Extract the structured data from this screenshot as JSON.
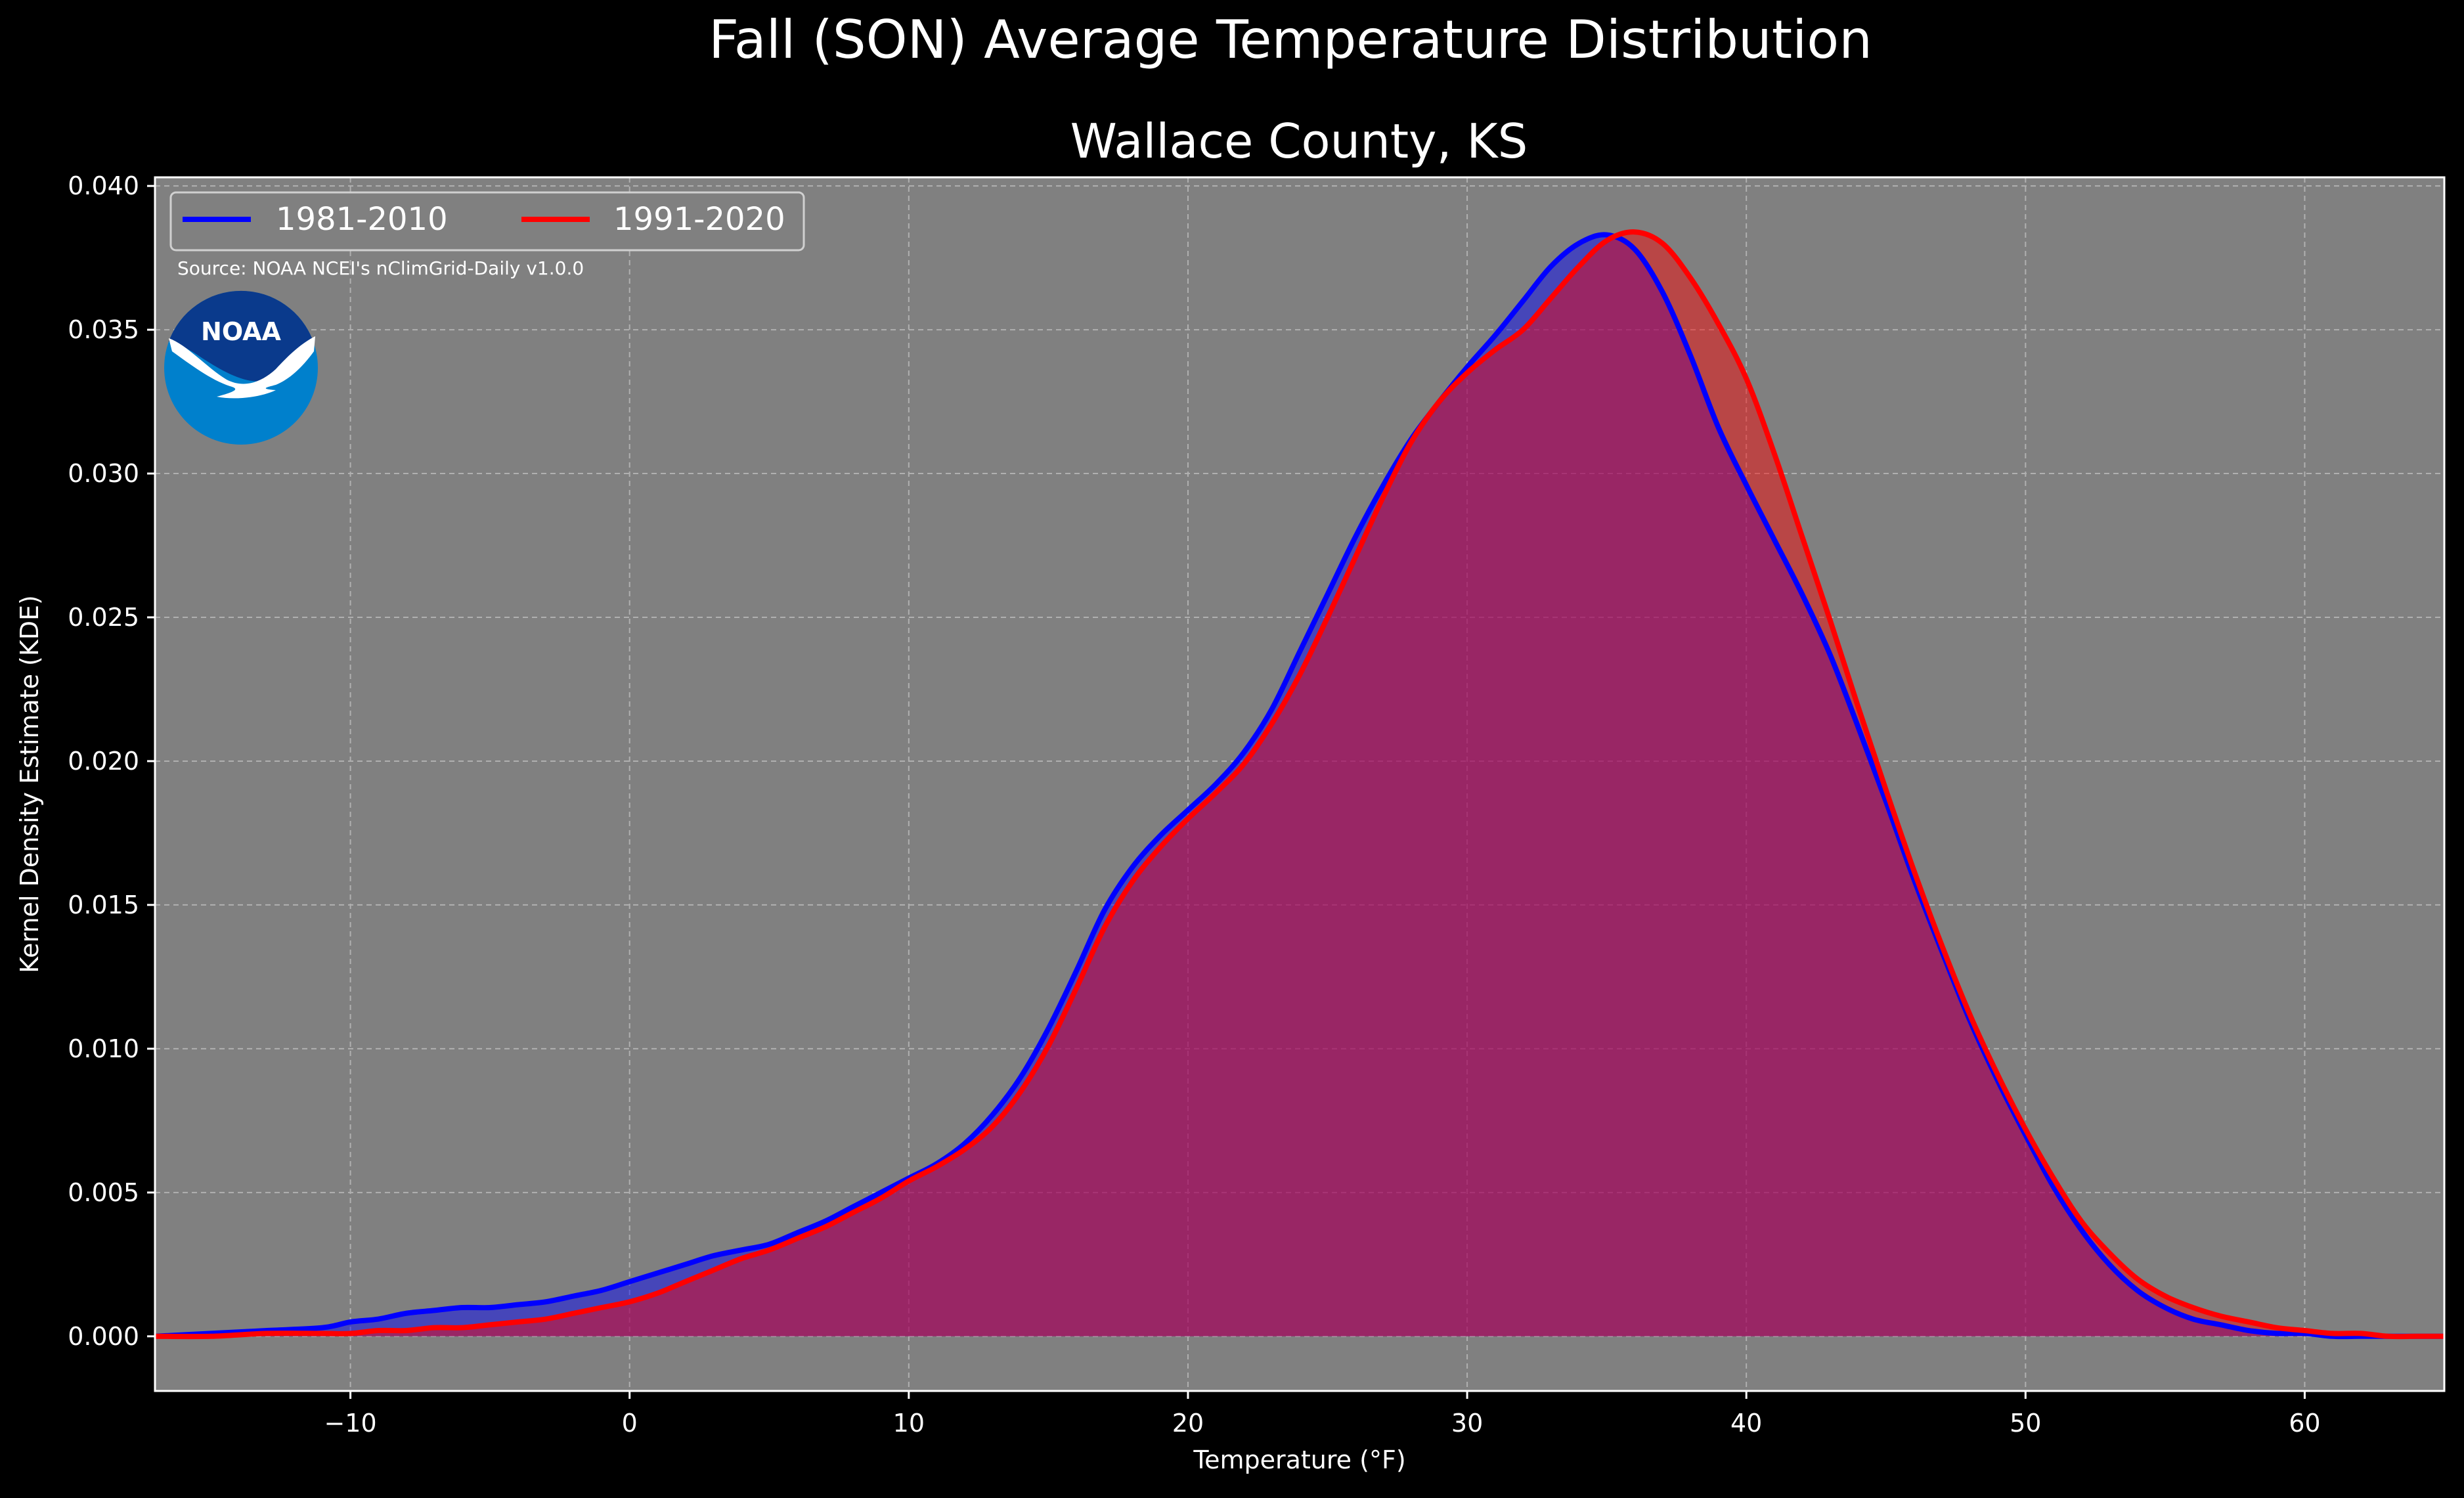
{
  "colors": {
    "figure_bg": "#000000",
    "plot_bg": "#808080",
    "text": "#ffffff",
    "series_1981": "#0000ff",
    "series_1991": "#ff0000",
    "overlap_fill": "#9e1f5c",
    "noaa_dark": "#0a3a8c",
    "noaa_light": "#0080cc"
  },
  "chart_data": {
    "type": "area",
    "title": "Fall (SON) Average Temperature Distribution",
    "subtitle": "Wallace County, KS",
    "xlabel": "Temperature ($^\\circ$F)",
    "xlabel_display": "Temperature (°F)",
    "ylabel": "Kernel Density Estimate (KDE)",
    "xlim": [
      -17,
      65
    ],
    "ylim": [
      -0.0019,
      0.0403
    ],
    "x_ticks": [
      -10,
      0,
      10,
      20,
      30,
      40,
      50,
      60
    ],
    "x_tick_labels": [
      "−10",
      "0",
      "10",
      "20",
      "30",
      "40",
      "50",
      "60"
    ],
    "y_ticks": [
      0.0,
      0.005,
      0.01,
      0.015,
      0.02,
      0.025,
      0.03,
      0.035,
      0.04
    ],
    "y_tick_labels": [
      "0.000",
      "0.005",
      "0.010",
      "0.015",
      "0.020",
      "0.025",
      "0.030",
      "0.035",
      "0.040"
    ],
    "grid": true,
    "legend_position": "top-left",
    "source_note": "Source: NOAA NCEI's nClimGrid-Daily v1.0.0",
    "logo_text": "NOAA",
    "series": [
      {
        "name": "1981-2010",
        "color": "#0000ff",
        "x": [
          -17,
          -15,
          -13,
          -11,
          -10,
          -9,
          -8,
          -7,
          -6,
          -5,
          -4,
          -3,
          -2,
          -1,
          0,
          1,
          2,
          3,
          4,
          5,
          6,
          7,
          8,
          9,
          10,
          11,
          12,
          13,
          14,
          15,
          16,
          17,
          18,
          19,
          20,
          21,
          22,
          23,
          24,
          25,
          26,
          27,
          28,
          29,
          30,
          31,
          32,
          33,
          34,
          35,
          36,
          37,
          38,
          39,
          40,
          41,
          42,
          43,
          44,
          45,
          46,
          47,
          48,
          49,
          50,
          51,
          52,
          53,
          54,
          55,
          56,
          57,
          58,
          59,
          60,
          61,
          62,
          63,
          64,
          65
        ],
        "y": [
          0.0,
          0.0001,
          0.0002,
          0.0003,
          0.0005,
          0.0006,
          0.0008,
          0.0009,
          0.001,
          0.001,
          0.0011,
          0.0012,
          0.0014,
          0.0016,
          0.0019,
          0.0022,
          0.0025,
          0.0028,
          0.003,
          0.0032,
          0.0036,
          0.004,
          0.0045,
          0.005,
          0.0055,
          0.006,
          0.0067,
          0.0077,
          0.009,
          0.0107,
          0.0127,
          0.0148,
          0.0163,
          0.0174,
          0.0183,
          0.0192,
          0.0203,
          0.0218,
          0.0238,
          0.0258,
          0.0278,
          0.0296,
          0.0312,
          0.0325,
          0.0337,
          0.0348,
          0.036,
          0.0372,
          0.038,
          0.0383,
          0.0378,
          0.0363,
          0.0341,
          0.0316,
          0.0296,
          0.0277,
          0.0258,
          0.0237,
          0.0212,
          0.0186,
          0.0159,
          0.0134,
          0.011,
          0.0089,
          0.007,
          0.0052,
          0.0037,
          0.0025,
          0.0016,
          0.001,
          0.0006,
          0.0004,
          0.0002,
          0.0001,
          0.0001,
          0.0,
          0.0,
          0.0,
          0.0,
          0.0
        ]
      },
      {
        "name": "1991-2020",
        "color": "#ff0000",
        "x": [
          -17,
          -15,
          -13,
          -11,
          -10,
          -9,
          -8,
          -7,
          -6,
          -5,
          -4,
          -3,
          -2,
          -1,
          0,
          1,
          2,
          3,
          4,
          5,
          6,
          7,
          8,
          9,
          10,
          11,
          12,
          13,
          14,
          15,
          16,
          17,
          18,
          19,
          20,
          21,
          22,
          23,
          24,
          25,
          26,
          27,
          28,
          29,
          30,
          31,
          32,
          33,
          34,
          35,
          36,
          37,
          38,
          39,
          40,
          41,
          42,
          43,
          44,
          45,
          46,
          47,
          48,
          49,
          50,
          51,
          52,
          53,
          54,
          55,
          56,
          57,
          58,
          59,
          60,
          61,
          62,
          63,
          64,
          65
        ],
        "y": [
          0.0,
          0.0,
          0.0001,
          0.0001,
          0.0001,
          0.0002,
          0.0002,
          0.0003,
          0.0003,
          0.0004,
          0.0005,
          0.0006,
          0.0008,
          0.001,
          0.0012,
          0.0015,
          0.0019,
          0.0023,
          0.0027,
          0.003,
          0.0034,
          0.0038,
          0.0043,
          0.0048,
          0.0054,
          0.0059,
          0.0065,
          0.0073,
          0.0085,
          0.0101,
          0.0121,
          0.0142,
          0.0158,
          0.017,
          0.018,
          0.0189,
          0.0199,
          0.0213,
          0.023,
          0.025,
          0.0271,
          0.0292,
          0.0311,
          0.0325,
          0.0335,
          0.0343,
          0.035,
          0.0361,
          0.0372,
          0.0381,
          0.0384,
          0.038,
          0.0368,
          0.0352,
          0.0333,
          0.0307,
          0.0278,
          0.0249,
          0.0219,
          0.019,
          0.0162,
          0.0136,
          0.0112,
          0.0091,
          0.0072,
          0.0055,
          0.004,
          0.0029,
          0.002,
          0.0014,
          0.001,
          0.0007,
          0.0005,
          0.0003,
          0.0002,
          0.0001,
          0.0001,
          0.0,
          0.0,
          0.0
        ]
      }
    ]
  }
}
